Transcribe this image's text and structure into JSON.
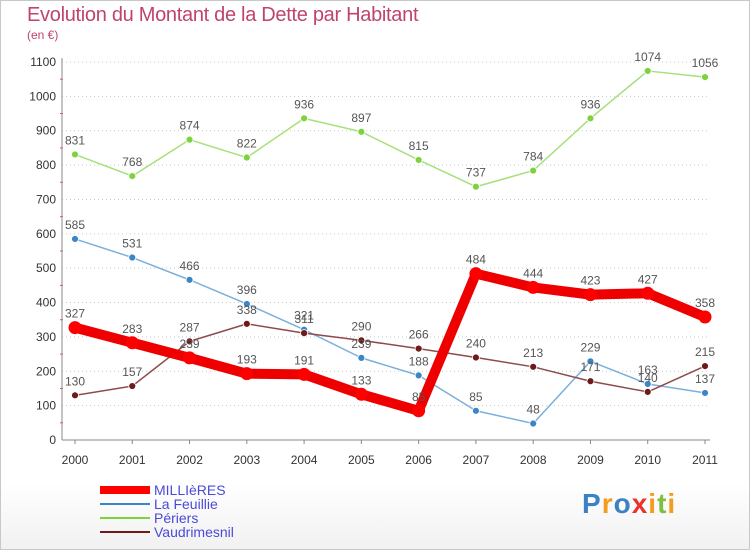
{
  "chart_data": {
    "type": "line",
    "title": "Evolution du Montant de la Dette par Habitant",
    "subtitle": "(en €)",
    "categories": [
      "2000",
      "2001",
      "2002",
      "2003",
      "2004",
      "2005",
      "2006",
      "2007",
      "2008",
      "2009",
      "2010",
      "2011"
    ],
    "ylim": [
      0,
      1100
    ],
    "yticks": [
      0,
      100,
      200,
      300,
      400,
      500,
      600,
      700,
      800,
      900,
      1000,
      1100
    ],
    "grid": "dotted horizontal",
    "legend_position": "bottom-left",
    "series": [
      {
        "name": "MILLIèRES",
        "values": [
          327,
          283,
          239,
          193,
          191,
          133,
          85,
          484,
          444,
          423,
          427,
          358
        ],
        "color": "#ff0000",
        "stroke_color": "#ee0000",
        "marker_color": "#ff0000",
        "label_color": "#555555"
      },
      {
        "name": "La Feuillie",
        "values": [
          585,
          531,
          466,
          396,
          321,
          239,
          188,
          85,
          48,
          229,
          163,
          137
        ],
        "color": "#3b86c6",
        "stroke_color": "#7ab0dc",
        "marker_color": "#3b86c6",
        "label_color": "#555555"
      },
      {
        "name": "Périers",
        "values": [
          831,
          768,
          874,
          822,
          936,
          897,
          815,
          737,
          784,
          936,
          1074,
          1056
        ],
        "color": "#7ed33c",
        "stroke_color": "#a6e07a",
        "marker_color": "#7ed33c",
        "label_color": "#555555"
      },
      {
        "name": "Vaudrimesnil",
        "values": [
          130,
          157,
          287,
          338,
          311,
          290,
          266,
          240,
          213,
          171,
          140,
          215
        ],
        "color": "#6e1a1a",
        "stroke_color": "#8f4a4a",
        "marker_color": "#6e1a1a",
        "label_color": "#555555"
      }
    ]
  },
  "brand": {
    "letters": [
      "P",
      "r",
      "o",
      "x",
      "i",
      "t",
      "i"
    ],
    "colors": [
      "#3a82c4",
      "#f39c1d",
      "#3a82c4",
      "#e8342c",
      "#f39c1d",
      "#7fbf3f",
      "#f39c1d"
    ]
  }
}
